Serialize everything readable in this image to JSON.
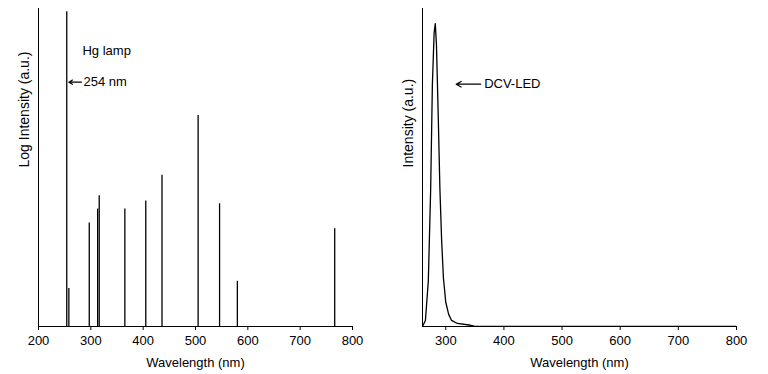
{
  "chart_data": [
    {
      "type": "stem",
      "x": [
        254,
        258,
        297,
        313,
        316,
        365,
        405,
        436,
        505,
        546,
        580,
        766
      ],
      "values": [
        9100,
        3,
        20,
        30,
        44,
        30,
        38,
        80,
        450,
        35,
        3.7,
        17
      ],
      "color": "#000000",
      "xlim": [
        200,
        800
      ],
      "xticks": [
        200,
        300,
        400,
        500,
        600,
        700,
        800
      ],
      "ylim": [
        1,
        10000
      ],
      "yticks": [],
      "log": "y",
      "tick_labels": "x",
      "x_label": "Wavelength (nm)",
      "y_label": "Log Intensity (a.u.)",
      "annotations": [
        "Hg lamp",
        "254 nm"
      ]
    },
    {
      "type": "line",
      "x": [
        260,
        265,
        270,
        274,
        277,
        280,
        282,
        284,
        287,
        290,
        293,
        296,
        300,
        305,
        310,
        320,
        340,
        350,
        800
      ],
      "values": [
        0,
        0.02,
        0.15,
        0.45,
        0.8,
        0.97,
        1.0,
        0.93,
        0.7,
        0.45,
        0.28,
        0.16,
        0.08,
        0.04,
        0.02,
        0.01,
        0.005,
        0,
        0
      ],
      "color": "#000000",
      "xlim": [
        260,
        800
      ],
      "xticks": [
        300,
        400,
        500,
        600,
        700,
        800
      ],
      "ylim": [
        0,
        1.05
      ],
      "yticks": [],
      "tick_labels": "x",
      "x_label": "Wavelength (nm)",
      "y_label": "Intensity (a.u.)",
      "annotations": [
        "DCV-LED"
      ]
    }
  ]
}
